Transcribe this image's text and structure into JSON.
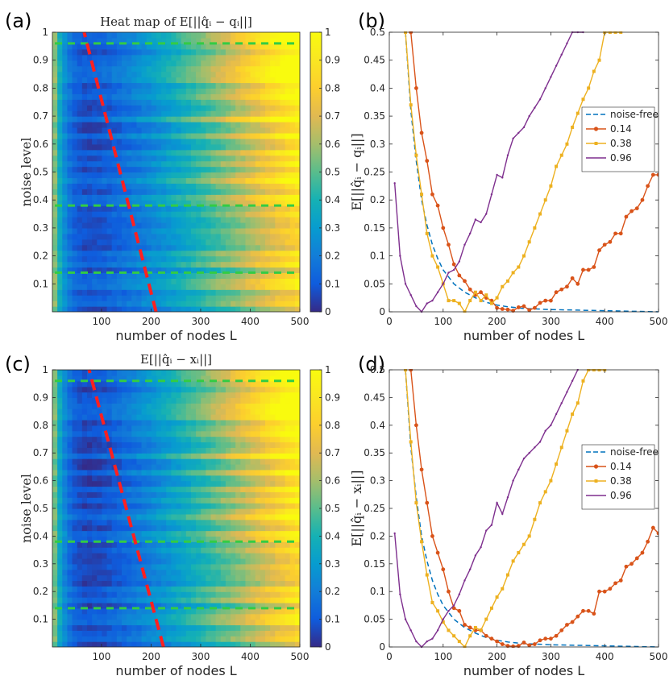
{
  "panels": {
    "a": "(a)",
    "b": "(b)",
    "c": "(c)",
    "d": "(d)"
  },
  "colors": {
    "noise_free": "#0072BD",
    "s014": "#D95319",
    "s038": "#EDB120",
    "s096": "#7E2F8E",
    "red_dash": "#ff2020",
    "green_dash": "#33cc44"
  },
  "chart_data": [
    {
      "id": "a",
      "type": "heatmap",
      "title": "Heat map of E[||q̂ᵢ − qᵢ||]",
      "xlabel": "number of nodes L",
      "ylabel": "noise level",
      "xlim": [
        1,
        500
      ],
      "ylim": [
        0,
        1
      ],
      "xticks": [
        "100",
        "200",
        "300",
        "400",
        "500"
      ],
      "yticks": [
        "0.1",
        "0.2",
        "0.3",
        "0.4",
        "0.5",
        "0.6",
        "0.7",
        "0.8",
        "0.9",
        "1"
      ],
      "colorbar": {
        "range": [
          0,
          1
        ],
        "ticks": [
          "0",
          "0.1",
          "0.2",
          "0.3",
          "0.4",
          "0.5",
          "0.6",
          "0.7",
          "0.8",
          "0.9",
          "1"
        ],
        "colormap": "parula"
      },
      "optimal_line": {
        "x": [
          210,
          65
        ],
        "y": [
          0,
          1
        ]
      },
      "hlines": [
        0.14,
        0.38,
        0.96
      ]
    },
    {
      "id": "b",
      "type": "line",
      "xlabel": "number of nodes L",
      "ylabel": "E[||q̂ᵢ − qᵢ||]",
      "xlim": [
        0,
        500
      ],
      "ylim": [
        0,
        0.5
      ],
      "xticks": [
        "0",
        "100",
        "200",
        "300",
        "400",
        "500"
      ],
      "yticks": [
        "0",
        "0.05",
        "0.1",
        "0.15",
        "0.2",
        "0.25",
        "0.3",
        "0.35",
        "0.4",
        "0.45",
        "0.5"
      ],
      "legend_position": "right",
      "series": [
        {
          "name": "noise-free",
          "style": "dashed",
          "x": [
            30,
            40,
            50,
            60,
            70,
            80,
            90,
            100,
            120,
            140,
            160,
            180,
            200,
            220,
            250,
            300,
            350,
            400,
            450,
            500
          ],
          "y": [
            0.5,
            0.36,
            0.27,
            0.2,
            0.155,
            0.12,
            0.095,
            0.075,
            0.05,
            0.035,
            0.025,
            0.017,
            0.012,
            0.009,
            0.006,
            0.004,
            0.003,
            0.002,
            0.001,
            0.0
          ]
        },
        {
          "name": "0.14",
          "x": [
            40,
            50,
            60,
            70,
            80,
            90,
            100,
            110,
            120,
            130,
            140,
            150,
            160,
            170,
            180,
            190,
            200,
            210,
            220,
            230,
            240,
            250,
            260,
            270,
            280,
            290,
            300,
            310,
            320,
            330,
            340,
            350,
            360,
            370,
            380,
            390,
            400,
            410,
            420,
            430,
            440,
            450,
            460,
            470,
            480,
            490,
            500
          ],
          "y": [
            0.5,
            0.4,
            0.32,
            0.27,
            0.21,
            0.19,
            0.15,
            0.12,
            0.085,
            0.065,
            0.055,
            0.04,
            0.03,
            0.035,
            0.025,
            0.02,
            0.007,
            0.005,
            0.004,
            0.002,
            0.008,
            0.01,
            0.003,
            0.007,
            0.016,
            0.02,
            0.02,
            0.035,
            0.04,
            0.045,
            0.06,
            0.05,
            0.075,
            0.075,
            0.08,
            0.11,
            0.12,
            0.125,
            0.14,
            0.14,
            0.17,
            0.18,
            0.185,
            0.2,
            0.225,
            0.245,
            0.245
          ]
        },
        {
          "name": "0.38",
          "x": [
            30,
            40,
            50,
            60,
            70,
            80,
            90,
            100,
            110,
            120,
            130,
            140,
            150,
            160,
            170,
            180,
            190,
            200,
            210,
            220,
            230,
            240,
            250,
            260,
            270,
            280,
            290,
            300,
            310,
            320,
            330,
            340,
            350,
            360,
            370,
            380,
            390,
            400,
            410,
            420,
            430
          ],
          "y": [
            0.5,
            0.37,
            0.28,
            0.21,
            0.14,
            0.1,
            0.08,
            0.05,
            0.02,
            0.02,
            0.015,
            0.0,
            0.02,
            0.035,
            0.02,
            0.03,
            0.015,
            0.025,
            0.045,
            0.055,
            0.07,
            0.08,
            0.1,
            0.125,
            0.15,
            0.175,
            0.2,
            0.225,
            0.26,
            0.28,
            0.3,
            0.33,
            0.355,
            0.38,
            0.4,
            0.43,
            0.45,
            0.5,
            0.5,
            0.5,
            0.5
          ]
        },
        {
          "name": "0.96",
          "x": [
            10,
            20,
            30,
            40,
            50,
            60,
            70,
            80,
            90,
            100,
            110,
            120,
            130,
            140,
            150,
            160,
            170,
            180,
            190,
            200,
            210,
            220,
            230,
            240,
            250,
            260,
            270,
            280,
            290,
            300,
            310,
            320,
            330,
            340,
            350,
            360
          ],
          "y": [
            0.23,
            0.1,
            0.05,
            0.03,
            0.01,
            0.0,
            0.015,
            0.02,
            0.035,
            0.05,
            0.07,
            0.075,
            0.09,
            0.12,
            0.14,
            0.165,
            0.16,
            0.175,
            0.21,
            0.245,
            0.24,
            0.28,
            0.31,
            0.32,
            0.33,
            0.35,
            0.365,
            0.38,
            0.4,
            0.42,
            0.44,
            0.46,
            0.48,
            0.5,
            0.5,
            0.5
          ]
        }
      ]
    },
    {
      "id": "c",
      "type": "heatmap",
      "title": "E[||q̂ᵢ − xᵢ||]",
      "xlabel": "number of nodes L",
      "ylabel": "noise level",
      "xlim": [
        1,
        500
      ],
      "ylim": [
        0,
        1
      ],
      "xticks": [
        "100",
        "200",
        "300",
        "400",
        "500"
      ],
      "yticks": [
        "0.1",
        "0.2",
        "0.3",
        "0.4",
        "0.5",
        "0.6",
        "0.7",
        "0.8",
        "0.9",
        "1"
      ],
      "colorbar": {
        "range": [
          0,
          1
        ],
        "ticks": [
          "0",
          "0.1",
          "0.2",
          "0.3",
          "0.4",
          "0.5",
          "0.6",
          "0.7",
          "0.8",
          "0.9",
          "1"
        ],
        "colormap": "parula"
      },
      "optimal_line": {
        "x": [
          225,
          75
        ],
        "y": [
          0,
          1
        ]
      },
      "hlines": [
        0.14,
        0.38,
        0.96
      ]
    },
    {
      "id": "d",
      "type": "line",
      "xlabel": "number of nodes L",
      "ylabel": "E[||q̂ᵢ − xᵢ||]",
      "xlim": [
        0,
        500
      ],
      "ylim": [
        0,
        0.5
      ],
      "xticks": [
        "0",
        "100",
        "200",
        "300",
        "400",
        "500"
      ],
      "yticks": [
        "0",
        "0.05",
        "0.1",
        "0.15",
        "0.2",
        "0.25",
        "0.3",
        "0.35",
        "0.4",
        "0.45",
        "0.5"
      ],
      "legend_position": "right",
      "series": [
        {
          "name": "noise-free",
          "style": "dashed",
          "x": [
            30,
            40,
            50,
            60,
            70,
            80,
            90,
            100,
            120,
            140,
            160,
            180,
            200,
            220,
            250,
            300,
            350,
            400,
            450,
            500
          ],
          "y": [
            0.5,
            0.36,
            0.27,
            0.2,
            0.155,
            0.12,
            0.095,
            0.075,
            0.05,
            0.035,
            0.025,
            0.017,
            0.012,
            0.009,
            0.006,
            0.004,
            0.003,
            0.002,
            0.001,
            0.0
          ]
        },
        {
          "name": "0.14",
          "x": [
            40,
            50,
            60,
            70,
            80,
            90,
            100,
            110,
            120,
            130,
            140,
            150,
            160,
            170,
            180,
            190,
            200,
            210,
            220,
            230,
            240,
            250,
            260,
            270,
            280,
            290,
            300,
            310,
            320,
            330,
            340,
            350,
            360,
            370,
            380,
            390,
            400,
            410,
            420,
            430,
            440,
            450,
            460,
            470,
            480,
            490,
            500
          ],
          "y": [
            0.5,
            0.4,
            0.32,
            0.26,
            0.2,
            0.17,
            0.14,
            0.1,
            0.07,
            0.065,
            0.04,
            0.035,
            0.03,
            0.03,
            0.02,
            0.015,
            0.01,
            0.005,
            0.002,
            0.001,
            0.002,
            0.008,
            0.003,
            0.005,
            0.012,
            0.015,
            0.015,
            0.02,
            0.03,
            0.04,
            0.045,
            0.055,
            0.065,
            0.065,
            0.06,
            0.1,
            0.1,
            0.105,
            0.115,
            0.12,
            0.145,
            0.15,
            0.16,
            0.17,
            0.19,
            0.215,
            0.205
          ]
        },
        {
          "name": "0.38",
          "x": [
            30,
            40,
            50,
            60,
            70,
            80,
            90,
            100,
            110,
            120,
            130,
            140,
            150,
            160,
            170,
            180,
            190,
            200,
            210,
            220,
            230,
            240,
            250,
            260,
            270,
            280,
            290,
            300,
            310,
            320,
            330,
            340,
            350,
            360,
            370,
            380,
            390,
            400
          ],
          "y": [
            0.5,
            0.37,
            0.26,
            0.19,
            0.13,
            0.08,
            0.065,
            0.045,
            0.03,
            0.02,
            0.01,
            0.0,
            0.02,
            0.035,
            0.03,
            0.05,
            0.07,
            0.09,
            0.105,
            0.13,
            0.155,
            0.17,
            0.185,
            0.2,
            0.23,
            0.26,
            0.28,
            0.3,
            0.33,
            0.36,
            0.39,
            0.42,
            0.44,
            0.48,
            0.5,
            0.5,
            0.5,
            0.5
          ]
        },
        {
          "name": "0.96",
          "x": [
            10,
            20,
            30,
            40,
            50,
            60,
            70,
            80,
            90,
            100,
            110,
            120,
            130,
            140,
            150,
            160,
            170,
            180,
            190,
            200,
            210,
            220,
            230,
            240,
            250,
            260,
            270,
            280,
            290,
            300,
            310,
            320,
            330,
            340,
            350
          ],
          "y": [
            0.205,
            0.095,
            0.05,
            0.03,
            0.01,
            0.0,
            0.01,
            0.015,
            0.03,
            0.05,
            0.065,
            0.075,
            0.095,
            0.12,
            0.14,
            0.165,
            0.18,
            0.21,
            0.22,
            0.26,
            0.24,
            0.27,
            0.3,
            0.32,
            0.34,
            0.35,
            0.36,
            0.37,
            0.39,
            0.4,
            0.42,
            0.44,
            0.46,
            0.48,
            0.5
          ]
        }
      ]
    }
  ]
}
